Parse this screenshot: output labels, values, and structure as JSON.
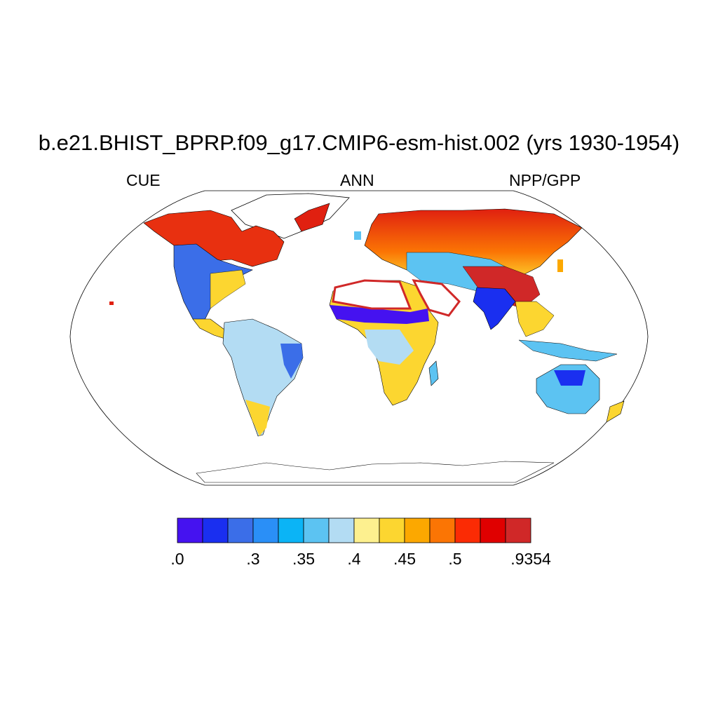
{
  "title": "b.e21.BHIST_BPRP.f09_g17.CMIP6-esm-hist.002 (yrs 1930-1954)",
  "subtitle_left": "CUE",
  "subtitle_center": "ANN",
  "subtitle_right": "NPP/GPP",
  "projection": "Robinson",
  "colorbar": {
    "colors": [
      "#4512f0",
      "#1a2ff0",
      "#3b6ee8",
      "#2a8ff7",
      "#0bb4f6",
      "#5cc3f2",
      "#b3dcf3",
      "#fdf08f",
      "#fcd630",
      "#fca800",
      "#fb7504",
      "#fb2b04",
      "#e00000",
      "#d02828"
    ],
    "labels": [
      ".0",
      ".3",
      ".35",
      ".4",
      ".45",
      ".5",
      ".9354"
    ],
    "label_boundaries": [
      0,
      3,
      5,
      7,
      9,
      11,
      14
    ]
  }
}
